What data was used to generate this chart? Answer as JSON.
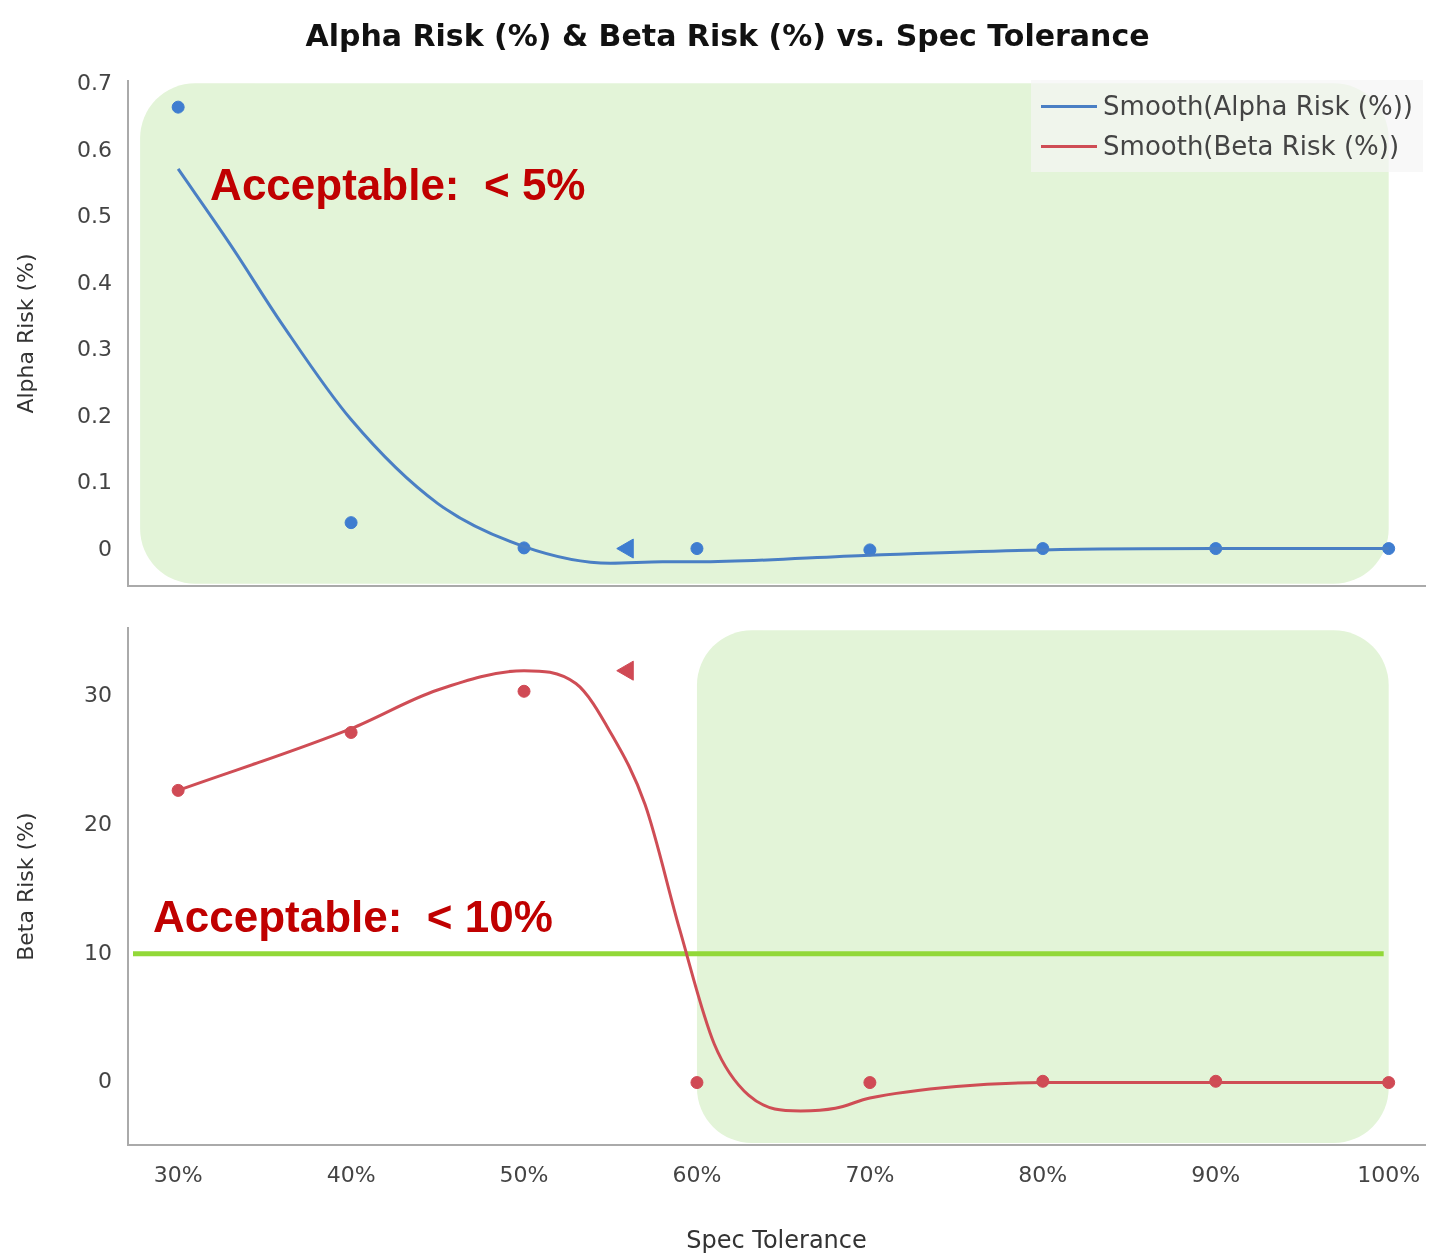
{
  "chart_data": [
    {
      "type": "line",
      "title": "Alpha Risk (%) & Beta Risk (%) vs. Spec Tolerance",
      "ylabel": "Alpha Risk (%)",
      "xlim": [
        27.1,
        102.1
      ],
      "ylim": [
        -0.054,
        0.705
      ],
      "yticks": [
        0,
        0.1,
        0.2,
        0.3,
        0.4,
        0.5,
        0.6,
        0.7
      ],
      "tick_labels": "y",
      "grid": false,
      "legend": "top right",
      "series": [
        {
          "name": "Smooth(Alpha Risk (%))",
          "marker": "none",
          "color": "#4a7fc4",
          "x": [
            30,
            33,
            36,
            40,
            45,
            50,
            55,
            58,
            60,
            70,
            80,
            90,
            100
          ],
          "values": [
            0.573,
            0.46,
            0.34,
            0.196,
            0.07,
            0.005,
            -0.02,
            -0.018,
            -0.018,
            -0.008,
            0,
            0.002,
            0.002
          ]
        },
        {
          "type": "scatter",
          "marker": "circle",
          "color": "#3f7dd0",
          "x": [
            30,
            40,
            50,
            60,
            70,
            80,
            90,
            100
          ],
          "values": [
            0.666,
            0.041,
            0.003,
            0.002,
            0,
            0.002,
            0.002,
            0.002
          ]
        },
        {
          "type": "scatter",
          "marker": "triangle",
          "color": "#3f7dd0",
          "x": [
            56
          ],
          "values": [
            0.002
          ]
        }
      ],
      "bands": [
        {
          "axis": "x",
          "from": 27.8,
          "to": 100,
          "color": "#e3f4d8",
          "label": "Acceptable:  < 5%"
        }
      ]
    },
    {
      "type": "line",
      "ylabel": "Beta Risk (%)",
      "xlabel": "Spec Tolerance",
      "xlim": [
        27.1,
        102.1
      ],
      "xticks": [
        {
          "value": 30,
          "label": "30%"
        },
        {
          "value": 40,
          "label": "40%"
        },
        {
          "value": 50,
          "label": "50%"
        },
        {
          "value": 60,
          "label": "60%"
        },
        {
          "value": 70,
          "label": "70%"
        },
        {
          "value": 80,
          "label": "80%"
        },
        {
          "value": 90,
          "label": "90%"
        },
        {
          "value": 100,
          "label": "100%"
        }
      ],
      "ylim": [
        -4.85,
        35.3
      ],
      "yticks": [
        0,
        10,
        20,
        30
      ],
      "grid": false,
      "series": [
        {
          "name": "Smooth(Beta Risk (%))",
          "marker": "none",
          "color": "#cf4d55",
          "x": [
            30,
            40,
            45,
            50,
            53,
            55,
            57,
            59,
            61,
            63,
            66,
            68,
            70,
            75,
            80,
            90,
            100
          ],
          "values": [
            22.7,
            27.5,
            30.5,
            32.0,
            31.0,
            27.2,
            21.6,
            11.9,
            3.0,
            -1.0,
            -2.2,
            -2.0,
            -1.2,
            -0.3,
            0,
            0,
            0
          ]
        },
        {
          "type": "scatter",
          "marker": "circle",
          "color": "#d04a55",
          "x": [
            30,
            40,
            50,
            60,
            70,
            80,
            90,
            100
          ],
          "values": [
            22.7,
            27.2,
            30.4,
            0,
            0,
            0.1,
            0.1,
            0
          ]
        },
        {
          "type": "scatter",
          "marker": "triangle",
          "color": "#d04a55",
          "x": [
            56
          ],
          "values": [
            32.0
          ]
        }
      ],
      "bands": [
        {
          "axis": "x",
          "from": 60,
          "to": 100,
          "color": "#e3f4d8"
        }
      ],
      "ref_lines": [
        {
          "axis": "y",
          "value": 10,
          "color": "#92d838",
          "label": "Acceptable:  < 10%"
        }
      ]
    }
  ]
}
